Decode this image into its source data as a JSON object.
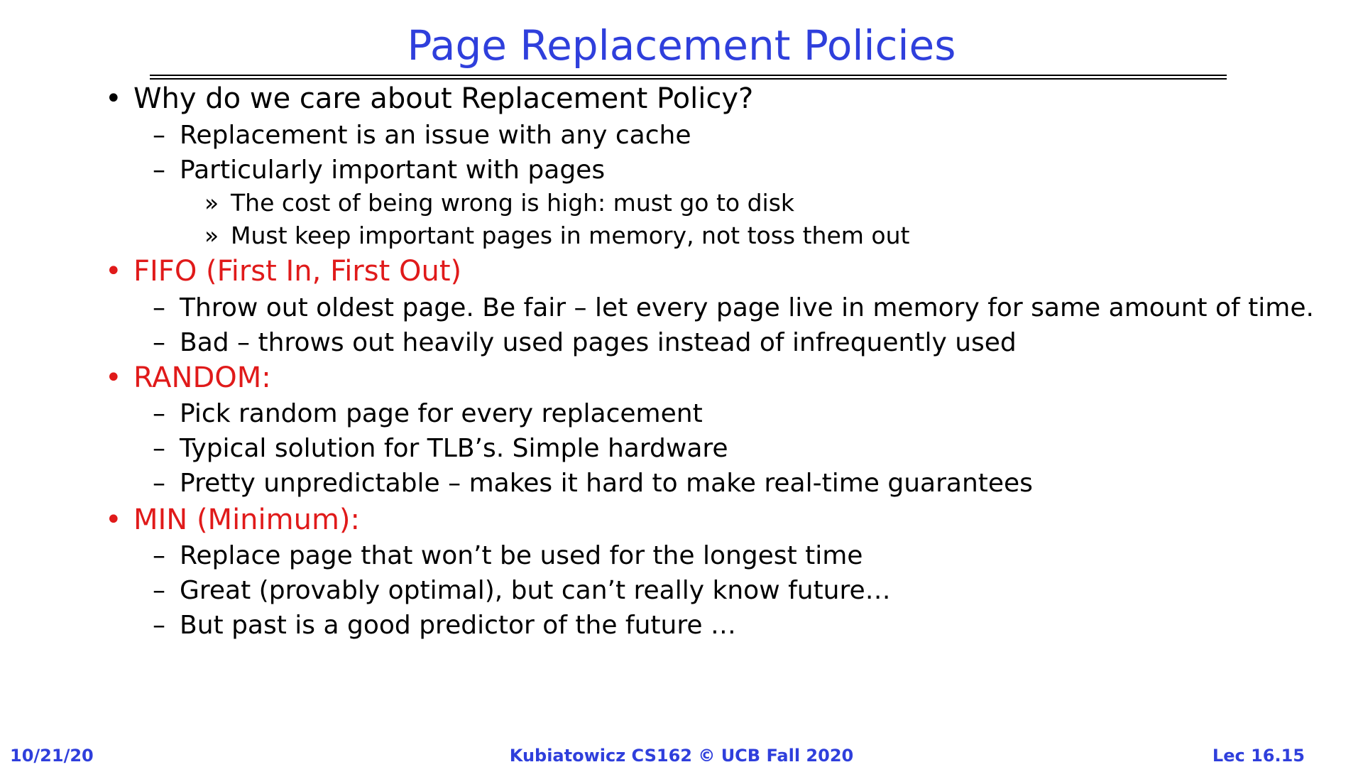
{
  "title": "Page Replacement Policies",
  "colors": {
    "title": "#2f3fdc",
    "highlight": "#e01a1a",
    "text": "#000000",
    "footer": "#2f3fdc"
  },
  "bullets": [
    {
      "marker": "•",
      "text": "Why do we care about Replacement Policy?",
      "highlight": false,
      "subitems": [
        {
          "marker": "–",
          "text": "Replacement is an issue with any cache",
          "subitems": []
        },
        {
          "marker": "–",
          "text": "Particularly important with pages",
          "subitems": [
            {
              "marker": "»",
              "text": "The cost of being wrong is high: must go to disk"
            },
            {
              "marker": "»",
              "text": "Must keep important pages in memory, not toss them out"
            }
          ]
        }
      ]
    },
    {
      "marker": "•",
      "text": "FIFO (First In, First Out)",
      "highlight": true,
      "subitems": [
        {
          "marker": "–",
          "text": "Throw out oldest page.  Be fair – let every page live in memory for same amount of time.",
          "subitems": []
        },
        {
          "marker": "–",
          "text": "Bad – throws out heavily used pages instead of infrequently used",
          "subitems": []
        }
      ]
    },
    {
      "marker": "•",
      "text": "RANDOM:",
      "highlight": true,
      "subitems": [
        {
          "marker": "–",
          "text": "Pick random page for every replacement",
          "subitems": []
        },
        {
          "marker": "–",
          "text": "Typical solution for TLB’s.  Simple hardware",
          "subitems": []
        },
        {
          "marker": "–",
          "text": "Pretty unpredictable – makes it hard to make real-time guarantees",
          "subitems": []
        }
      ]
    },
    {
      "marker": "•",
      "text": "MIN (Minimum):",
      "highlight": true,
      "subitems": [
        {
          "marker": "–",
          "text": "Replace page that won’t be used for the longest time",
          "subitems": []
        },
        {
          "marker": "–",
          "text": "Great (provably optimal), but can’t really know future…",
          "subitems": []
        },
        {
          "marker": "–",
          "text": "But past is a good predictor of the future …",
          "subitems": []
        }
      ]
    }
  ],
  "footer": {
    "date": "10/21/20",
    "course": "Kubiatowicz CS162 © UCB Fall 2020",
    "lecture": "Lec 16.15"
  }
}
